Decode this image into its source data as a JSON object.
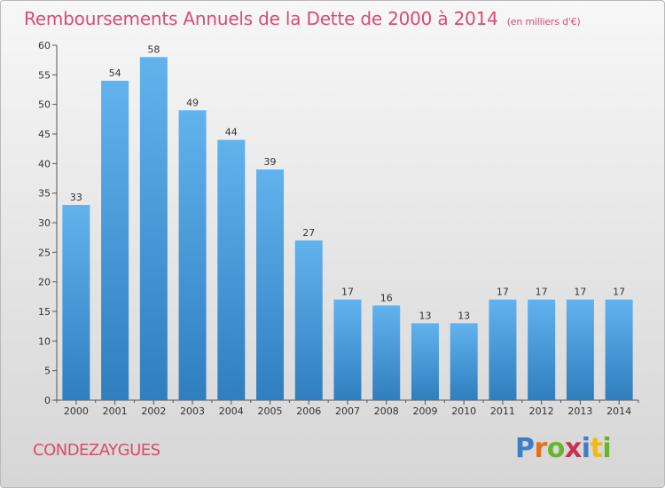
{
  "header": {
    "title": "Remboursements Annuels de la Dette de 2000 à 2014",
    "unit_note": "(en milliers d'€)"
  },
  "footer": {
    "commune": "CONDEZAYGUES",
    "logo_text": "Proxiti"
  },
  "colors": {
    "title": "#d94b70",
    "bar_top": "#62b2ee",
    "bar_bottom": "#2f7fc0",
    "axis": "#555555"
  },
  "chart_data": {
    "type": "bar",
    "title": "Remboursements Annuels de la Dette de 2000 à 2014",
    "subtitle": "(en milliers d'€)",
    "categories": [
      "2000",
      "2001",
      "2002",
      "2003",
      "2004",
      "2005",
      "2006",
      "2007",
      "2008",
      "2009",
      "2010",
      "2011",
      "2012",
      "2013",
      "2014"
    ],
    "values": [
      33,
      54,
      58,
      49,
      44,
      39,
      27,
      17,
      16,
      13,
      13,
      17,
      17,
      17,
      17
    ],
    "ylim": [
      0,
      60
    ],
    "yticks": [
      0,
      5,
      10,
      15,
      20,
      25,
      30,
      35,
      40,
      45,
      50,
      55,
      60
    ],
    "grid": false,
    "legend": "none"
  }
}
